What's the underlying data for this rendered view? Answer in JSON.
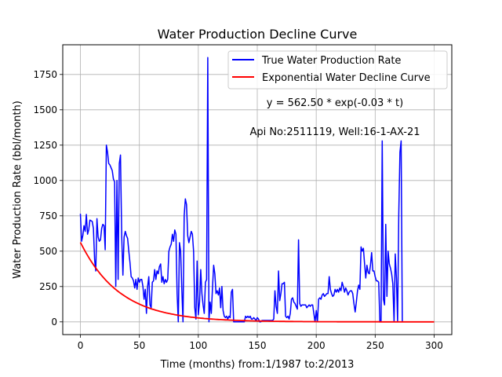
{
  "chart_data": {
    "type": "line",
    "title": "Water Production Decline Curve",
    "xlabel": "Time (months) from:1/1987 to:2/2013",
    "ylabel": "Water Production Rate (bbl/month)",
    "xlim": [
      -15,
      315
    ],
    "ylim": [
      -90,
      1960
    ],
    "xticks": [
      0,
      50,
      100,
      150,
      200,
      250,
      300
    ],
    "yticks": [
      0,
      250,
      500,
      750,
      1000,
      1250,
      1500,
      1750
    ],
    "grid": true,
    "legend": "top-right",
    "annotations": [
      "y = 562.50 * exp(-0.03 * t)",
      "Api No:2511119, Well:16-1-AX-21"
    ],
    "series": [
      {
        "name": "True Water Production Rate",
        "color": "#0000ff",
        "points": [
          [
            0,
            765
          ],
          [
            1,
            570
          ],
          [
            2,
            610
          ],
          [
            3,
            680
          ],
          [
            4,
            640
          ],
          [
            5,
            760
          ],
          [
            6,
            620
          ],
          [
            7,
            650
          ],
          [
            8,
            720
          ],
          [
            10,
            710
          ],
          [
            11,
            660
          ],
          [
            12,
            440
          ],
          [
            13,
            360
          ],
          [
            14,
            730
          ],
          [
            15,
            600
          ],
          [
            16,
            570
          ],
          [
            17,
            580
          ],
          [
            18,
            660
          ],
          [
            19,
            690
          ],
          [
            20,
            680
          ],
          [
            21,
            510
          ],
          [
            22,
            1250
          ],
          [
            23,
            1200
          ],
          [
            24,
            1120
          ],
          [
            25,
            1110
          ],
          [
            26,
            1090
          ],
          [
            27,
            1070
          ],
          [
            28,
            1010
          ],
          [
            29,
            990
          ],
          [
            30,
            250
          ],
          [
            31,
            1000
          ],
          [
            32,
            300
          ],
          [
            33,
            1120
          ],
          [
            34,
            1180
          ],
          [
            35,
            600
          ],
          [
            36,
            330
          ],
          [
            37,
            600
          ],
          [
            38,
            640
          ],
          [
            39,
            610
          ],
          [
            40,
            590
          ],
          [
            41,
            500
          ],
          [
            42,
            420
          ],
          [
            43,
            320
          ],
          [
            44,
            310
          ],
          [
            45,
            290
          ],
          [
            46,
            240
          ],
          [
            47,
            300
          ],
          [
            48,
            230
          ],
          [
            49,
            310
          ],
          [
            50,
            280
          ],
          [
            51,
            300
          ],
          [
            52,
            300
          ],
          [
            53,
            250
          ],
          [
            54,
            160
          ],
          [
            55,
            230
          ],
          [
            56,
            60
          ],
          [
            57,
            250
          ],
          [
            58,
            320
          ],
          [
            59,
            120
          ],
          [
            60,
            100
          ],
          [
            61,
            280
          ],
          [
            62,
            290
          ],
          [
            63,
            370
          ],
          [
            64,
            300
          ],
          [
            65,
            360
          ],
          [
            66,
            340
          ],
          [
            67,
            390
          ],
          [
            68,
            410
          ],
          [
            69,
            280
          ],
          [
            70,
            320
          ],
          [
            71,
            270
          ],
          [
            72,
            300
          ],
          [
            73,
            280
          ],
          [
            74,
            300
          ],
          [
            75,
            500
          ],
          [
            76,
            530
          ],
          [
            77,
            550
          ],
          [
            78,
            620
          ],
          [
            79,
            570
          ],
          [
            80,
            650
          ],
          [
            81,
            620
          ],
          [
            82,
            200
          ],
          [
            83,
            0
          ],
          [
            84,
            560
          ],
          [
            85,
            500
          ],
          [
            86,
            230
          ],
          [
            87,
            0
          ],
          [
            88,
            750
          ],
          [
            89,
            870
          ],
          [
            90,
            830
          ],
          [
            91,
            610
          ],
          [
            92,
            560
          ],
          [
            93,
            600
          ],
          [
            94,
            640
          ],
          [
            95,
            620
          ],
          [
            96,
            500
          ],
          [
            97,
            100
          ],
          [
            98,
            20
          ],
          [
            99,
            430
          ],
          [
            100,
            50
          ],
          [
            101,
            140
          ],
          [
            102,
            370
          ],
          [
            103,
            200
          ],
          [
            104,
            120
          ],
          [
            105,
            60
          ],
          [
            106,
            280
          ],
          [
            107,
            300
          ],
          [
            108,
            1870
          ],
          [
            109,
            0
          ],
          [
            110,
            140
          ],
          [
            111,
            60
          ],
          [
            112,
            240
          ],
          [
            113,
            400
          ],
          [
            114,
            340
          ],
          [
            115,
            200
          ],
          [
            116,
            220
          ],
          [
            117,
            190
          ],
          [
            118,
            240
          ],
          [
            119,
            100
          ],
          [
            120,
            250
          ],
          [
            121,
            80
          ],
          [
            122,
            40
          ],
          [
            123,
            30
          ],
          [
            124,
            40
          ],
          [
            125,
            20
          ],
          [
            126,
            40
          ],
          [
            127,
            30
          ],
          [
            128,
            210
          ],
          [
            129,
            230
          ],
          [
            130,
            0
          ],
          [
            131,
            0
          ],
          [
            132,
            0
          ],
          [
            133,
            0
          ],
          [
            134,
            0
          ],
          [
            135,
            0
          ],
          [
            136,
            0
          ],
          [
            137,
            0
          ],
          [
            138,
            0
          ],
          [
            139,
            0
          ],
          [
            140,
            40
          ],
          [
            141,
            30
          ],
          [
            142,
            40
          ],
          [
            143,
            30
          ],
          [
            144,
            40
          ],
          [
            145,
            20
          ],
          [
            146,
            20
          ],
          [
            147,
            30
          ],
          [
            148,
            20
          ],
          [
            149,
            10
          ],
          [
            150,
            30
          ],
          [
            151,
            20
          ],
          [
            152,
            0
          ],
          [
            153,
            0
          ],
          [
            154,
            10
          ],
          [
            155,
            10
          ],
          [
            156,
            10
          ],
          [
            157,
            10
          ],
          [
            158,
            10
          ],
          [
            159,
            10
          ],
          [
            160,
            10
          ],
          [
            161,
            10
          ],
          [
            162,
            10
          ],
          [
            163,
            10
          ],
          [
            164,
            20
          ],
          [
            165,
            220
          ],
          [
            166,
            110
          ],
          [
            167,
            60
          ],
          [
            168,
            360
          ],
          [
            169,
            150
          ],
          [
            170,
            200
          ],
          [
            171,
            270
          ],
          [
            172,
            270
          ],
          [
            173,
            280
          ],
          [
            174,
            40
          ],
          [
            175,
            30
          ],
          [
            176,
            40
          ],
          [
            177,
            20
          ],
          [
            178,
            60
          ],
          [
            179,
            160
          ],
          [
            180,
            170
          ],
          [
            181,
            140
          ],
          [
            182,
            130
          ],
          [
            183,
            110
          ],
          [
            184,
            90
          ],
          [
            185,
            580
          ],
          [
            186,
            130
          ],
          [
            187,
            110
          ],
          [
            188,
            120
          ],
          [
            189,
            120
          ],
          [
            190,
            120
          ],
          [
            191,
            120
          ],
          [
            192,
            100
          ],
          [
            193,
            110
          ],
          [
            194,
            120
          ],
          [
            195,
            110
          ],
          [
            196,
            120
          ],
          [
            197,
            120
          ],
          [
            198,
            60
          ],
          [
            199,
            0
          ],
          [
            200,
            80
          ],
          [
            201,
            0
          ],
          [
            202,
            160
          ],
          [
            203,
            170
          ],
          [
            204,
            160
          ],
          [
            205,
            190
          ],
          [
            206,
            200
          ],
          [
            207,
            180
          ],
          [
            208,
            190
          ],
          [
            209,
            200
          ],
          [
            210,
            200
          ],
          [
            211,
            320
          ],
          [
            212,
            230
          ],
          [
            213,
            200
          ],
          [
            214,
            180
          ],
          [
            215,
            190
          ],
          [
            216,
            230
          ],
          [
            217,
            210
          ],
          [
            218,
            230
          ],
          [
            219,
            210
          ],
          [
            220,
            240
          ],
          [
            221,
            220
          ],
          [
            222,
            280
          ],
          [
            223,
            250
          ],
          [
            224,
            210
          ],
          [
            225,
            240
          ],
          [
            226,
            220
          ],
          [
            227,
            190
          ],
          [
            228,
            210
          ],
          [
            229,
            220
          ],
          [
            230,
            220
          ],
          [
            231,
            200
          ],
          [
            232,
            130
          ],
          [
            233,
            70
          ],
          [
            234,
            140
          ],
          [
            235,
            220
          ],
          [
            236,
            260
          ],
          [
            237,
            230
          ],
          [
            238,
            530
          ],
          [
            239,
            500
          ],
          [
            240,
            520
          ],
          [
            241,
            410
          ],
          [
            242,
            310
          ],
          [
            243,
            400
          ],
          [
            244,
            350
          ],
          [
            245,
            340
          ],
          [
            246,
            400
          ],
          [
            247,
            490
          ],
          [
            248,
            360
          ],
          [
            249,
            360
          ],
          [
            250,
            320
          ],
          [
            251,
            290
          ],
          [
            252,
            290
          ],
          [
            253,
            280
          ],
          [
            254,
            0
          ],
          [
            255,
            0
          ],
          [
            256,
            1280
          ],
          [
            257,
            160
          ],
          [
            258,
            120
          ],
          [
            259,
            690
          ],
          [
            260,
            180
          ],
          [
            261,
            500
          ],
          [
            262,
            410
          ],
          [
            263,
            380
          ],
          [
            264,
            340
          ],
          [
            265,
            270
          ],
          [
            266,
            0
          ],
          [
            267,
            480
          ],
          [
            268,
            310
          ],
          [
            269,
            0
          ],
          [
            270,
            760
          ],
          [
            271,
            1200
          ],
          [
            272,
            1280
          ],
          [
            273,
            0
          ],
          [
            275,
            0
          ],
          [
            280,
            0
          ],
          [
            285,
            0
          ],
          [
            290,
            0
          ],
          [
            295,
            0
          ],
          [
            300,
            0
          ]
        ]
      },
      {
        "name": "Exponential Water Decline Curve",
        "color": "#ff0000",
        "function": {
          "a": 562.5,
          "b": 0.03,
          "t_start": 0,
          "t_end": 300
        }
      }
    ]
  }
}
